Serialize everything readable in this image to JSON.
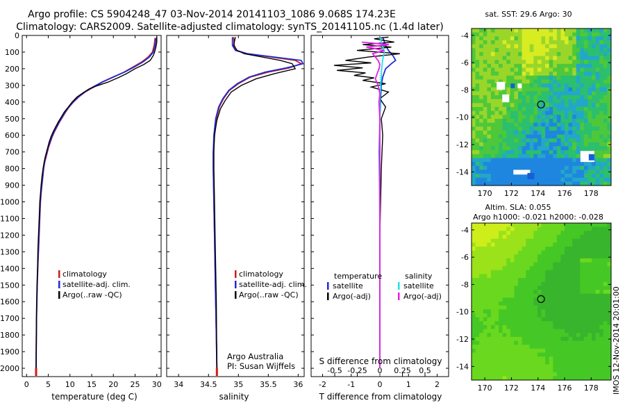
{
  "header": {
    "title_line1": "Argo profile: CS 5904248_47 03-Nov-2014 20141103_1086 9.068S 174.23E",
    "title_line2": "Climatology: CARS2009. Satellite-adjusted climatology: synTS_20141105.nc (1.4d later)"
  },
  "colors": {
    "climatology": "#d11a1a",
    "satellite": "#1f2bd6",
    "argo": "#000000",
    "salinity_satellite": "#19e3ee",
    "salinity_argo": "#e61ee6"
  },
  "chart_data": [
    {
      "type": "line",
      "name": "temperature",
      "xlabel": "temperature (deg C)",
      "ylabel": "",
      "xlim": [
        -1,
        31
      ],
      "ylim": [
        2050,
        0
      ],
      "x_ticks": [
        "0",
        "5",
        "10",
        "15",
        "20",
        "25",
        "30"
      ],
      "y_ticks": [
        "0",
        "100",
        "200",
        "300",
        "400",
        "500",
        "600",
        "700",
        "800",
        "900",
        "1000",
        "1100",
        "1200",
        "1300",
        "1400",
        "1500",
        "1600",
        "1700",
        "1800",
        "1900",
        "2000"
      ],
      "legend": [
        "climatology",
        "satellite-adj. clim.",
        "Argo(..raw -QC)"
      ],
      "series": [
        {
          "name": "climatology",
          "x": [
            29.6,
            29.5,
            29.4,
            29.0,
            28.0,
            26.5,
            24.5,
            22.5,
            20.0,
            17.5,
            15.5,
            13.5,
            12.0,
            10.8,
            9.8,
            9.0,
            8.3,
            7.6,
            7.0,
            6.4,
            5.9,
            5.5,
            5.1,
            4.8,
            4.5,
            4.2,
            3.95,
            3.75,
            3.55,
            3.35,
            3.2,
            3.05,
            2.9,
            2.75,
            2.6,
            2.45,
            2.3,
            2.2
          ],
          "y": [
            15,
            40,
            60,
            100,
            130,
            160,
            190,
            220,
            250,
            280,
            310,
            340,
            370,
            400,
            430,
            460,
            490,
            520,
            550,
            580,
            610,
            640,
            670,
            700,
            730,
            760,
            800,
            850,
            900,
            950,
            1000,
            1100,
            1200,
            1300,
            1400,
            1500,
            1700,
            2000
          ]
        },
        {
          "name": "satellite",
          "x": [
            29.8,
            29.7,
            29.6,
            29.2,
            28.3,
            26.8,
            24.8,
            22.6,
            19.9,
            17.4,
            15.3,
            13.4,
            11.9,
            10.7,
            9.7,
            8.9,
            8.2,
            7.5,
            6.9,
            6.3,
            5.8,
            5.4,
            5.0,
            4.7,
            4.4,
            4.15,
            3.9,
            3.7,
            3.5,
            3.3,
            3.15,
            3.0,
            2.85,
            2.7,
            2.55,
            2.4,
            2.28,
            2.18
          ],
          "y": [
            15,
            40,
            60,
            100,
            130,
            160,
            190,
            220,
            250,
            280,
            310,
            340,
            370,
            400,
            430,
            460,
            490,
            520,
            550,
            580,
            610,
            640,
            670,
            700,
            730,
            760,
            800,
            850,
            900,
            950,
            1000,
            1100,
            1200,
            1300,
            1400,
            1500,
            1700,
            2000
          ]
        },
        {
          "name": "argo",
          "x": [
            30.0,
            30.0,
            29.8,
            29.5,
            29.2,
            28.5,
            27.0,
            25.0,
            23.0,
            21.0,
            18.8,
            16.5,
            14.5,
            13.0,
            11.6,
            10.5,
            9.6,
            8.7,
            8.0,
            7.3,
            6.7,
            6.1,
            5.6,
            5.2,
            4.9,
            4.6,
            4.3,
            4.05,
            3.8,
            3.55,
            3.35,
            3.2,
            3.05,
            2.9,
            2.75,
            2.6,
            2.45,
            2.3,
            2.2
          ],
          "y": [
            8,
            40,
            70,
            100,
            120,
            150,
            175,
            200,
            230,
            255,
            280,
            300,
            320,
            345,
            370,
            400,
            430,
            460,
            490,
            520,
            550,
            580,
            610,
            640,
            670,
            700,
            730,
            760,
            800,
            850,
            900,
            950,
            1000,
            1100,
            1200,
            1300,
            1500,
            1700,
            2000
          ]
        }
      ]
    },
    {
      "type": "line",
      "name": "salinity",
      "xlabel": "salinity",
      "ylabel": "",
      "xlim": [
        33.8,
        36.1
      ],
      "ylim": [
        2050,
        0
      ],
      "x_ticks": [
        "34",
        "34.5",
        "35",
        "35.5",
        "36"
      ],
      "legend": [
        "climatology",
        "satellite-adj. clim.",
        "Argo(..raw -QC)"
      ],
      "annotation": [
        "Argo Australia",
        "PI: Susan Wijffels"
      ],
      "series": [
        {
          "name": "climatology",
          "x": [
            34.92,
            34.93,
            34.97,
            35.15,
            35.55,
            35.95,
            36.05,
            35.85,
            35.5,
            35.2,
            35.0,
            34.85,
            34.75,
            34.68,
            34.63,
            34.6,
            34.58,
            34.58,
            34.59,
            34.6,
            34.61,
            34.62,
            34.63,
            34.64
          ],
          "y": [
            10,
            60,
            90,
            110,
            130,
            150,
            170,
            195,
            220,
            250,
            290,
            330,
            380,
            430,
            500,
            600,
            700,
            800,
            1000,
            1200,
            1400,
            1600,
            1800,
            2000
          ]
        },
        {
          "name": "satellite",
          "x": [
            34.9,
            34.9,
            34.95,
            35.15,
            35.6,
            36.05,
            36.08,
            35.8,
            35.45,
            35.18,
            34.98,
            34.84,
            34.74,
            34.67,
            34.62,
            34.59,
            34.58,
            34.58,
            34.59,
            34.6,
            34.61,
            34.62,
            34.63,
            34.64
          ],
          "y": [
            10,
            60,
            90,
            110,
            130,
            150,
            170,
            195,
            220,
            250,
            290,
            330,
            380,
            430,
            500,
            600,
            700,
            800,
            1000,
            1200,
            1400,
            1600,
            1800,
            2000
          ]
        },
        {
          "name": "argo",
          "x": [
            34.95,
            34.92,
            34.98,
            35.1,
            35.4,
            35.7,
            35.9,
            35.95,
            35.6,
            35.3,
            35.05,
            34.88,
            34.78,
            34.7,
            34.64,
            34.6,
            34.59,
            34.59,
            34.6,
            34.61,
            34.62,
            34.63,
            34.64
          ],
          "y": [
            10,
            60,
            90,
            110,
            130,
            150,
            170,
            200,
            230,
            260,
            300,
            340,
            390,
            440,
            510,
            600,
            700,
            800,
            1000,
            1200,
            1400,
            1600,
            2000
          ]
        }
      ]
    },
    {
      "type": "line",
      "name": "differences",
      "xlabel": "T difference from climatology",
      "x2label": "S difference from climatology",
      "xlim": [
        -2.4,
        2.4
      ],
      "ylim": [
        2050,
        0
      ],
      "x_ticks": [
        "-2",
        "-1",
        "0",
        "1",
        "2"
      ],
      "x2_ticks": [
        "-0.5",
        "-0.25",
        "0",
        "0.25",
        "0.5"
      ],
      "legend_headers": [
        "temperature",
        "salinity"
      ],
      "legend": [
        "satellite",
        "Argo(-adj)",
        "satellite",
        "Argo(-adj)"
      ],
      "series": [
        {
          "name": "T satellite",
          "x": [
            0.1,
            0.2,
            0.3,
            0.45,
            0.55,
            0.4,
            0.2,
            0.1,
            0.05,
            0.02,
            0.0,
            -0.02,
            -0.01,
            0.0,
            0.0,
            0.0,
            0.0
          ],
          "y": [
            10,
            60,
            90,
            120,
            150,
            170,
            200,
            250,
            300,
            400,
            500,
            700,
            900,
            1200,
            1500,
            1800,
            2000
          ]
        },
        {
          "name": "T argo",
          "x": [
            0.3,
            -0.2,
            0.5,
            -0.6,
            0.4,
            -0.8,
            0.7,
            -0.4,
            -1.2,
            -0.3,
            -1.6,
            -0.6,
            -1.5,
            -0.5,
            -0.9,
            -0.2,
            -0.6,
            0.2,
            -0.3,
            0.3,
            0.0,
            0.2,
            0.05,
            0.1,
            0.05,
            0.0,
            0.0
          ],
          "y": [
            10,
            20,
            40,
            55,
            70,
            90,
            110,
            130,
            150,
            165,
            180,
            195,
            210,
            225,
            240,
            255,
            270,
            290,
            310,
            340,
            380,
            430,
            500,
            600,
            800,
            1200,
            2000
          ]
        },
        {
          "name": "S satellite",
          "x": [
            0.0,
            0.03,
            0.05,
            0.03,
            0.02,
            0.01,
            0.0,
            0.0,
            0.0,
            0.0,
            0.0,
            0.0,
            0.0
          ],
          "y": [
            10,
            60,
            100,
            150,
            200,
            300,
            400,
            600,
            800,
            1000,
            1400,
            1800,
            2000
          ]
        },
        {
          "name": "S argo",
          "x": [
            -0.2,
            0.1,
            -0.15,
            0.05,
            -0.08,
            -0.05,
            -0.02,
            0.0,
            -0.01,
            -0.03,
            -0.05,
            -0.02,
            0.0,
            -0.01,
            0.0,
            0.0,
            0.0,
            0.0
          ],
          "y": [
            40,
            55,
            70,
            90,
            110,
            130,
            150,
            175,
            200,
            230,
            260,
            300,
            350,
            400,
            500,
            700,
            1000,
            2000
          ]
        }
      ]
    },
    {
      "type": "heatmap",
      "name": "sst_map",
      "title": "sat. SST: 29.6 Argo: 30",
      "xlim": [
        169,
        179.5
      ],
      "ylim": [
        -15,
        -3.5
      ],
      "x_ticks": [
        "170",
        "172",
        "174",
        "176",
        "178"
      ],
      "y_ticks": [
        "-4",
        "-6",
        "-8",
        "-10",
        "-12",
        "-14"
      ],
      "marker": {
        "lon": 174.23,
        "lat": -9.068
      }
    },
    {
      "type": "heatmap",
      "name": "sla_map",
      "title": "Altim. SLA: 0.055",
      "subtitle": "Argo h1000: -0.021 h2000: -0.028",
      "xlim": [
        169,
        179.5
      ],
      "ylim": [
        -15,
        -3.5
      ],
      "x_ticks": [
        "170",
        "172",
        "174",
        "176",
        "178"
      ],
      "y_ticks": [
        "-4",
        "-6",
        "-8",
        "-10",
        "-12",
        "-14"
      ],
      "marker": {
        "lon": 174.23,
        "lat": -9.068
      }
    }
  ],
  "footer": {
    "stamp": "IMOS 12-Nov-2014 20:01:00"
  }
}
